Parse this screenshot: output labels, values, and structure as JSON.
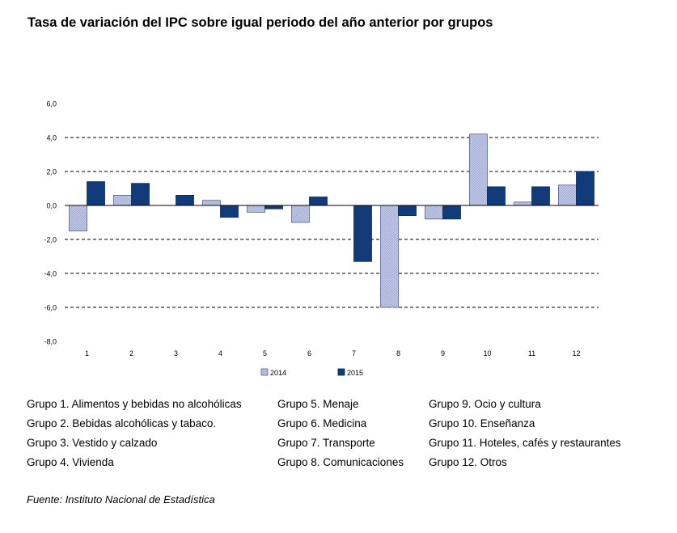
{
  "title": "Tasa de variación del IPC sobre igual periodo del año anterior por grupos",
  "chart_data": {
    "type": "bar",
    "categories": [
      "1",
      "2",
      "3",
      "4",
      "5",
      "6",
      "7",
      "8",
      "9",
      "10",
      "11",
      "12"
    ],
    "series": [
      {
        "name": "2014",
        "values": [
          -1.5,
          0.6,
          0.0,
          0.3,
          -0.4,
          -1.0,
          0.0,
          -6.0,
          -0.8,
          4.2,
          0.2,
          1.2
        ]
      },
      {
        "name": "2015",
        "values": [
          1.4,
          1.3,
          0.6,
          -0.7,
          -0.2,
          0.5,
          -3.3,
          -0.6,
          -0.8,
          1.1,
          1.1,
          2.0
        ]
      }
    ],
    "ylim": [
      -8,
      6
    ],
    "yticks": [
      "6,0",
      "4,0",
      "2,0",
      "0,0",
      "-2,0",
      "-4,0",
      "-6,0",
      "-8,0"
    ],
    "grid": true,
    "legend": "bottom",
    "colors": {
      "2014": "#b8c0e0",
      "2015": "#12407e"
    }
  },
  "groups": [
    [
      "Grupo 1. Alimentos y bebidas no alcohólicas",
      "Grupo 2. Bebidas alcohólicas y  tabaco.",
      "Grupo 3. Vestido y calzado",
      "Grupo 4. Vivienda"
    ],
    [
      "Grupo 5. Menaje",
      "Grupo 6. Medicina",
      "Grupo 7. Transporte",
      "Grupo 8. Comunicaciones"
    ],
    [
      "Grupo 9. Ocio y cultura",
      "Grupo 10. Enseñanza",
      "Grupo 11. Hoteles, cafés y restaurantes",
      "Grupo 12. Otros"
    ]
  ],
  "source": "Fuente: Instituto Nacional de Estadística"
}
